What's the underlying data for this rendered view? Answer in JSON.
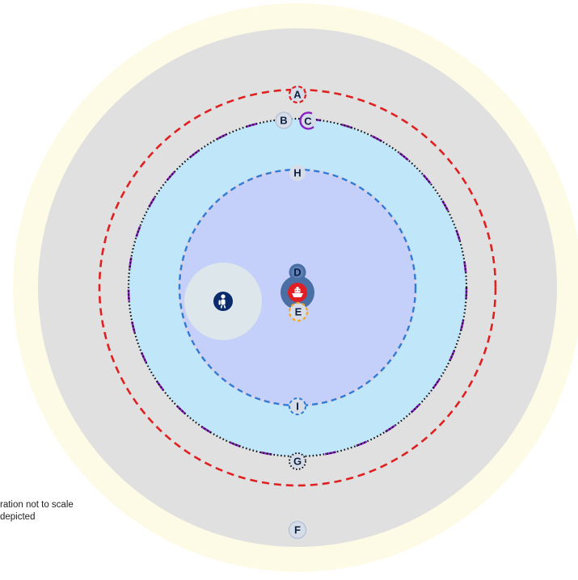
{
  "notes": {
    "line1": "ration not to scale",
    "line2": "depicted"
  },
  "colors": {
    "outer_halo": "#fdfbe6",
    "outer_zone": "#e0e0e0",
    "middle_zone": "#bfe6f9",
    "inner_zone": "#c4cffa",
    "inner_zone_edge": "#d6d2e8",
    "side_zone": "#dde6ea",
    "red_dash": "#e02020",
    "purple_dash": "#8a1fc4",
    "blue_dash": "#2f7bd8",
    "black_dots": "#111111",
    "orange_dash": "#f5a623",
    "marker_fill": "#d6dde8",
    "marker_text": "#0c1f3f",
    "dark_marker": "#4a6fa5",
    "red_icon": "#e01e24",
    "navy_icon": "#0a2a6b"
  },
  "icons": {
    "center": "ship-icon",
    "side": "diver-icon"
  },
  "markers": {
    "A": "A",
    "B": "B",
    "C": "C",
    "D": "D",
    "E": "E",
    "F": "F",
    "G": "G",
    "H": "H",
    "I": "I"
  }
}
